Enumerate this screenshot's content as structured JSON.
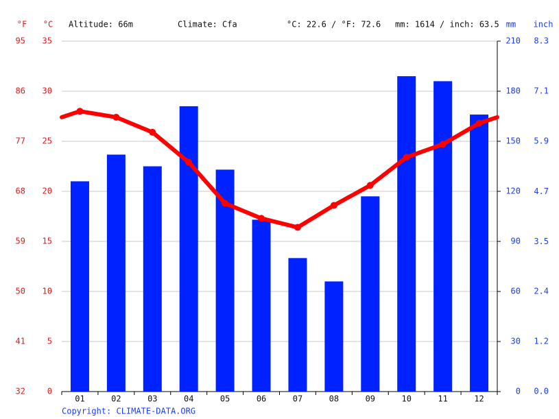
{
  "chart_data": {
    "type": "combo",
    "header": {
      "f_unit": "°F",
      "c_unit": "°C",
      "altitude": "Altitude: 66m",
      "climate": "Climate: Cfa",
      "temperature_avg": "°C: 22.6 / °F: 72.6",
      "precipitation_total": "mm: 1614 / inch: 63.5",
      "mm_unit": "mm",
      "inch_unit": "inch"
    },
    "categories": [
      "01",
      "02",
      "03",
      "04",
      "05",
      "06",
      "07",
      "08",
      "09",
      "10",
      "11",
      "12"
    ],
    "series": [
      {
        "type": "bar",
        "axis": "y2",
        "color": "#0022ff",
        "values": [
          126,
          142,
          135,
          171,
          133,
          103,
          80,
          66,
          117,
          189,
          186,
          166
        ]
      },
      {
        "type": "line",
        "axis": "y",
        "color": "#ff0000",
        "values": [
          28.0,
          27.4,
          25.9,
          22.9,
          18.8,
          17.3,
          16.4,
          18.6,
          20.6,
          23.4,
          24.7,
          26.8
        ]
      }
    ],
    "ylim": [
      0,
      35
    ],
    "yticks": [
      0,
      5,
      10,
      15,
      20,
      25,
      30,
      35
    ],
    "yflim": [
      32,
      95
    ],
    "yfticks": [
      32,
      41,
      50,
      59,
      68,
      77,
      86,
      95
    ],
    "y2lim": [
      0,
      210
    ],
    "y2ticks": [
      0,
      30,
      60,
      90,
      120,
      150,
      180,
      210
    ],
    "yinchlim": [
      0,
      8.27
    ],
    "yinchticks": [
      {
        "value": 0,
        "label": "0.0"
      },
      {
        "value": 1.18,
        "label": "1.2"
      },
      {
        "value": 2.36,
        "label": "2.4"
      },
      {
        "value": 3.54,
        "label": "3.5"
      },
      {
        "value": 4.72,
        "label": "4.7"
      },
      {
        "value": 5.91,
        "label": "5.9"
      },
      {
        "value": 7.09,
        "label": "7.1"
      },
      {
        "value": 8.27,
        "label": "8.3"
      }
    ],
    "grid": true,
    "copyright": "Copyright: CLIMATE-DATA.ORG"
  }
}
